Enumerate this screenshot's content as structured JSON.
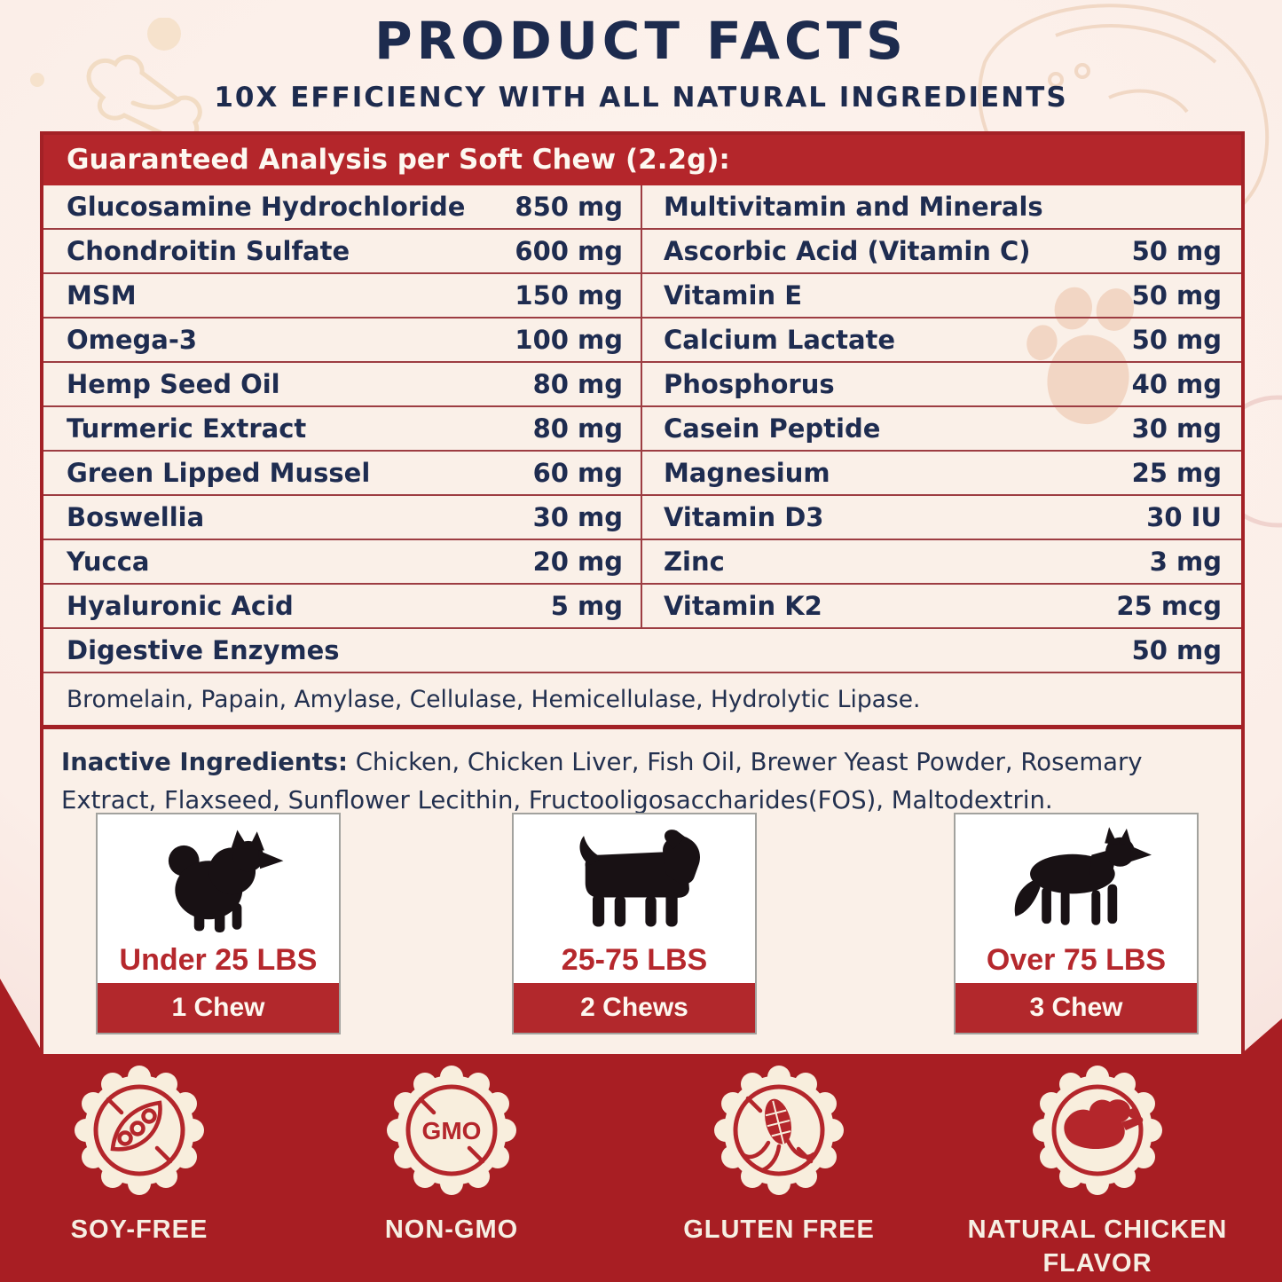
{
  "page": {
    "title": "PRODUCT FACTS",
    "subtitle": "10X EFFICIENCY WITH ALL NATURAL INGREDIENTS"
  },
  "analysis": {
    "heading": "Guaranteed Analysis per Soft Chew (2.2g):",
    "left_rows": [
      {
        "name": "Glucosamine Hydrochloride",
        "value": "850 mg"
      },
      {
        "name": "Chondroitin Sulfate",
        "value": "600 mg"
      },
      {
        "name": "MSM",
        "value": "150 mg"
      },
      {
        "name": "Omega-3",
        "value": "100 mg"
      },
      {
        "name": "Hemp Seed Oil",
        "value": "80 mg"
      },
      {
        "name": "Turmeric Extract",
        "value": "80 mg"
      },
      {
        "name": "Green Lipped Mussel",
        "value": "60 mg"
      },
      {
        "name": "Boswellia",
        "value": "30 mg"
      },
      {
        "name": "Yucca",
        "value": "20 mg"
      },
      {
        "name": "Hyaluronic Acid",
        "value": "5 mg"
      }
    ],
    "right_rows": [
      {
        "name": "Multivitamin and Minerals",
        "value": ""
      },
      {
        "name": "Ascorbic Acid (Vitamin C)",
        "value": "50 mg"
      },
      {
        "name": "Vitamin E",
        "value": "50 mg"
      },
      {
        "name": "Calcium Lactate",
        "value": "50 mg"
      },
      {
        "name": "Phosphorus",
        "value": "40 mg"
      },
      {
        "name": "Casein Peptide",
        "value": "30 mg"
      },
      {
        "name": "Magnesium",
        "value": "25 mg"
      },
      {
        "name": "Vitamin D3",
        "value": "30 IU"
      },
      {
        "name": "Zinc",
        "value": "3 mg"
      },
      {
        "name": "Vitamin K2",
        "value": "25 mcg"
      }
    ],
    "full_row": {
      "name": "Digestive Enzymes",
      "value": "50 mg"
    },
    "enzymes_note": "Bromelain, Papain, Amylase, Cellulase, Hemicellulase, Hydrolytic Lipase."
  },
  "inactive": {
    "label": "Inactive Ingredients:",
    "text": " Chicken, Chicken Liver, Fish Oil, Brewer Yeast Powder, Rosemary Extract, Flaxseed, Sunflower Lecithin, Fructooligosaccharides(FOS), Maltodextrin."
  },
  "dosage": [
    {
      "weight": "Under 25 LBS",
      "chews": "1 Chew",
      "dog": "small-dog-icon"
    },
    {
      "weight": "25-75 LBS",
      "chews": "2 Chews",
      "dog": "medium-dog-icon"
    },
    {
      "weight": "Over 75 LBS",
      "chews": "3 Chew",
      "dog": "large-dog-icon"
    }
  ],
  "badges": [
    {
      "label": "SOY-FREE",
      "icon": "soy-free-icon"
    },
    {
      "label": "NON-GMO",
      "icon": "non-gmo-icon",
      "icon_text": "GMO"
    },
    {
      "label": "GLUTEN FREE",
      "icon": "gluten-free-icon"
    },
    {
      "label": "NATURAL CHICKEN FLAVOR",
      "icon": "chicken-flavor-icon"
    }
  ],
  "colors": {
    "navy_text": "#1e2c50",
    "label_red": "#b4262b",
    "dark_band_red": "#a81e23",
    "cream": "#faf0e8",
    "seal_cream": "#f8eedd"
  }
}
